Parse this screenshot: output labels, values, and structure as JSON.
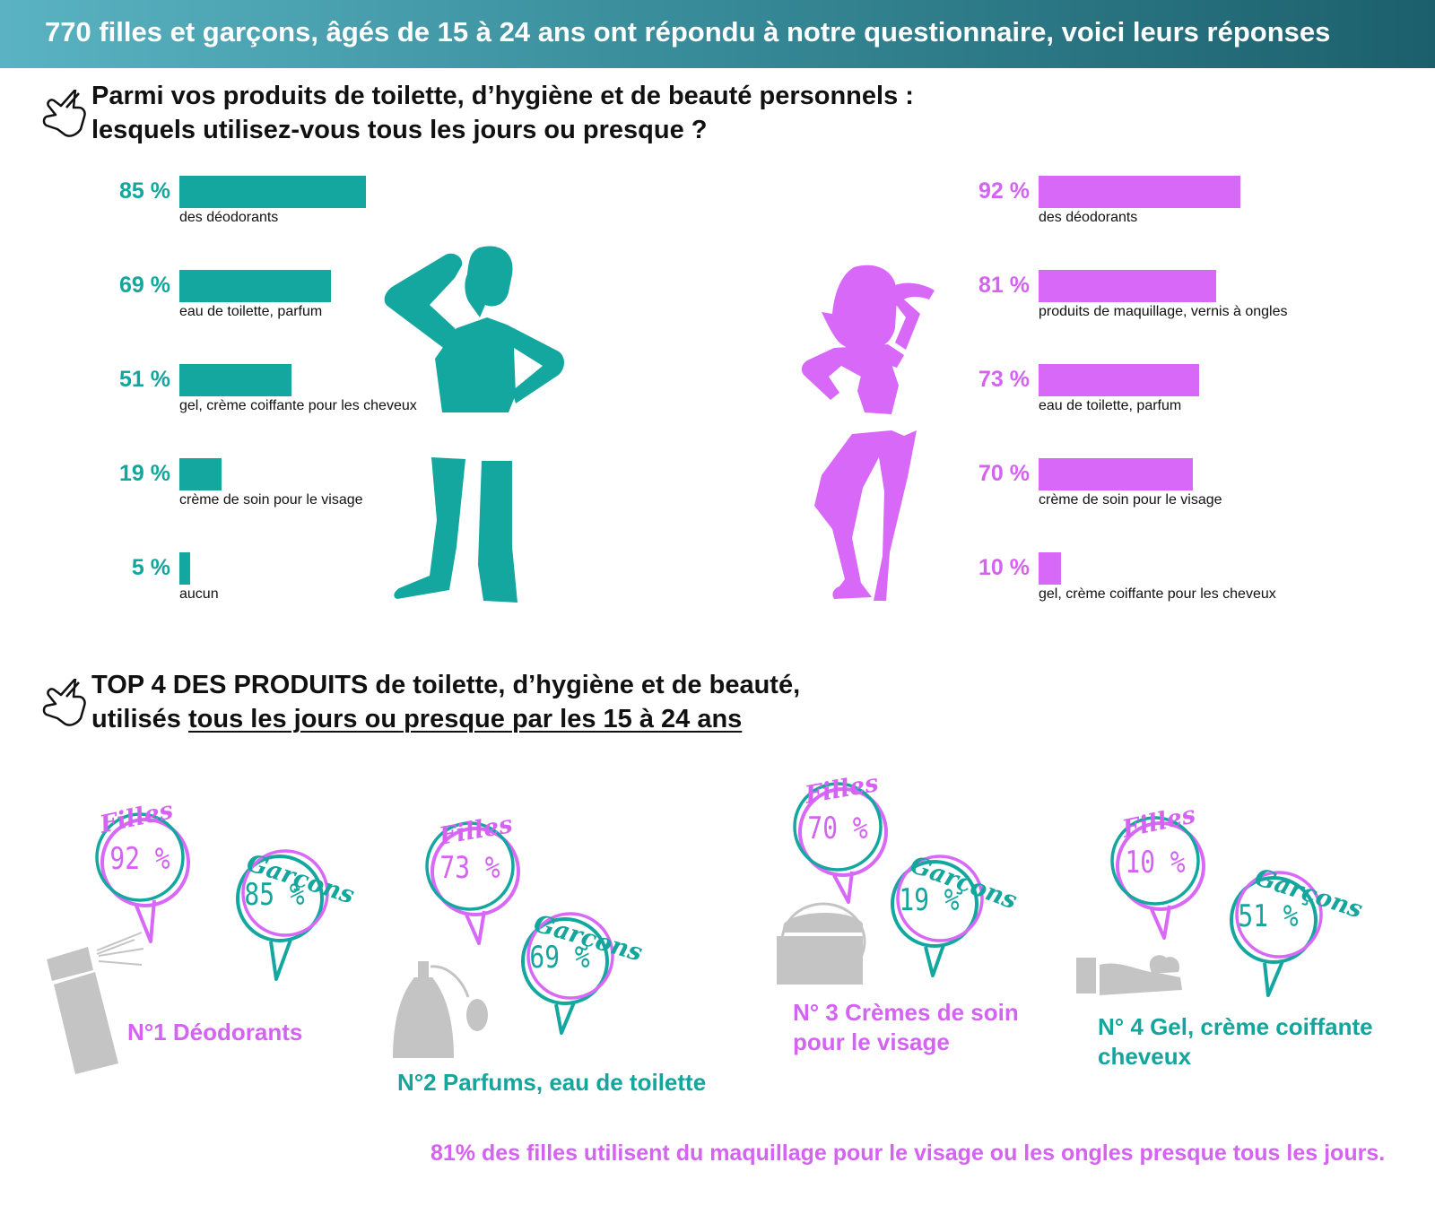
{
  "banner": {
    "text": "770  filles et garçons, âgés de 15 à 24 ans ont répondu à notre questionnaire, voici leurs réponses"
  },
  "question1": {
    "line1": "Parmi vos produits de toilette, d’hygiène et de beauté personnels :",
    "line2": "lesquels utilisez-vous tous les jours ou presque ?"
  },
  "colors": {
    "boys": "#14a79f",
    "girls": "#d868f7",
    "grey": "#c2c2c2"
  },
  "icons": {
    "pointer": "pointing-hand-icon",
    "boy": "boy-silhouette-icon",
    "girl": "girl-silhouette-icon",
    "deodorant": "deodorant-spray-icon",
    "perfume": "perfume-bottle-icon",
    "cream": "cream-jar-icon",
    "gel": "gel-hand-icon"
  },
  "chart_data": [
    {
      "type": "bar",
      "series": [
        {
          "categories": [
            "des déodorants",
            "eau de toilette, parfum",
            "gel, crème coiffante pour les cheveux",
            "crème de soin pour le visage",
            "aucun"
          ],
          "values": [
            85,
            69,
            51,
            19,
            5
          ],
          "labels": [
            "85 %",
            "69 %",
            "51 %",
            "19 %",
            "5 %"
          ]
        }
      ]
    },
    {
      "type": "bar",
      "series": [
        {
          "categories": [
            "des déodorants",
            "produits de maquillage, vernis à ongles",
            "eau de toilette, parfum",
            "crème de soin pour le visage",
            "gel, crème coiffante pour les cheveux"
          ],
          "values": [
            92,
            81,
            73,
            70,
            10
          ],
          "labels": [
            "92 %",
            "81 %",
            "73 %",
            "70 %",
            "10 %"
          ]
        }
      ]
    }
  ],
  "question2": {
    "line1": "TOP 4 DES PRODUITS de toilette, d’hygiène et de beauté,",
    "line2_prefix": "utilisés ",
    "line2_underlined": "tous les jours ou presque par les 15 à 24 ans"
  },
  "top4": [
    {
      "filles_label": "Filles",
      "filles_value": "92 %",
      "garcons_label": "Garçons",
      "garcons_value": "85 %",
      "caption1": "N°1 Déodorants",
      "caption2": ""
    },
    {
      "filles_label": "Filles",
      "filles_value": "73 %",
      "garcons_label": "Garçons",
      "garcons_value": "69 %",
      "caption1": "N°2 Parfums, eau de toilette",
      "caption2": ""
    },
    {
      "filles_label": "Filles",
      "filles_value": "70 %",
      "garcons_label": "Garçons",
      "garcons_value": "19 %",
      "caption1": "N° 3 Crèmes de soin",
      "caption2": "pour le visage"
    },
    {
      "filles_label": "Filles",
      "filles_value": "10 %",
      "garcons_label": "Garçons",
      "garcons_value": "51 %",
      "caption1": "N° 4 Gel, crème coiffante",
      "caption2": "cheveux"
    }
  ],
  "footer_note": "81% des filles utilisent du maquillage pour le visage ou les ongles presque tous les jours."
}
